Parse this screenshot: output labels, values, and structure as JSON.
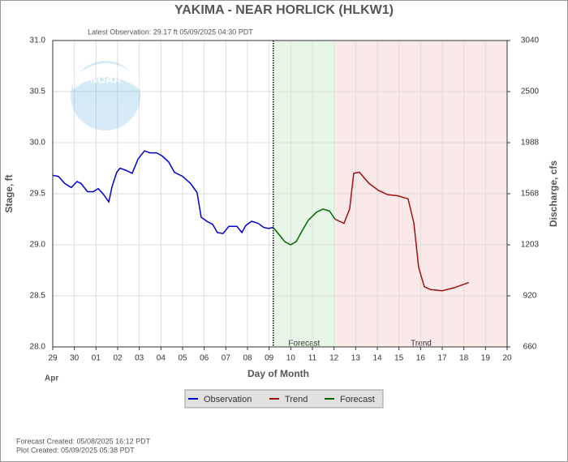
{
  "chart_data": {
    "type": "line",
    "title": "YAKIMA - NEAR HORLICK  (HLKW1)",
    "subtitle": "Latest Observation: 29.17 ft 05/09/2025 04:30 PDT",
    "logo_text": "NOAA",
    "xlabel": "Day of Month",
    "x_month_label": "Apr",
    "ylabel": "Stage, ft",
    "y2label": "Discharge, cfs",
    "xlim": [
      0,
      21
    ],
    "xticks": [
      {
        "value": 0,
        "label": "29"
      },
      {
        "value": 1,
        "label": "30"
      },
      {
        "value": 2,
        "label": "01"
      },
      {
        "value": 3,
        "label": "02"
      },
      {
        "value": 4,
        "label": "03"
      },
      {
        "value": 5,
        "label": "04"
      },
      {
        "value": 6,
        "label": "05"
      },
      {
        "value": 7,
        "label": "06"
      },
      {
        "value": 8,
        "label": "07"
      },
      {
        "value": 9,
        "label": "08"
      },
      {
        "value": 10,
        "label": "09"
      },
      {
        "value": 11,
        "label": "10"
      },
      {
        "value": 12,
        "label": "11"
      },
      {
        "value": 13,
        "label": "12"
      },
      {
        "value": 14,
        "label": "13"
      },
      {
        "value": 15,
        "label": "14"
      },
      {
        "value": 16,
        "label": "15"
      },
      {
        "value": 17,
        "label": "16"
      },
      {
        "value": 18,
        "label": "17"
      },
      {
        "value": 19,
        "label": "18"
      },
      {
        "value": 20,
        "label": "19"
      },
      {
        "value": 21,
        "label": "20"
      }
    ],
    "ylim": [
      28.0,
      31.0
    ],
    "yticks": [
      {
        "value": 28,
        "label": "28.0"
      },
      {
        "value": 28.5,
        "label": "28.5"
      },
      {
        "value": 29,
        "label": "29.0"
      },
      {
        "value": 29.5,
        "label": "29.5"
      },
      {
        "value": 30,
        "label": "30.0"
      },
      {
        "value": 30.5,
        "label": "30.5"
      },
      {
        "value": 31,
        "label": "31.0"
      }
    ],
    "y2lim": [
      660,
      3040
    ],
    "y2ticks": [
      660,
      920,
      1203,
      1568,
      1988,
      2500,
      3040
    ],
    "grid": true,
    "observation_end": 10.19,
    "shaded_regions": [
      {
        "label": "Forecast",
        "range": [
          10.19,
          13.05
        ],
        "color": "#e8f6e8"
      },
      {
        "label": "Trend",
        "range": [
          13.05,
          21
        ],
        "color": "#fbe8e8"
      }
    ],
    "series": [
      {
        "name": "Observation",
        "color": "#0000cc",
        "x": [
          0,
          0.26,
          0.56,
          0.86,
          1.12,
          1.31,
          1.61,
          1.87,
          2.1,
          2.32,
          2.59,
          2.74,
          2.96,
          3.11,
          3.37,
          3.67,
          3.94,
          4.24,
          4.5,
          4.8,
          5.06,
          5.36,
          5.62,
          6.0,
          6.37,
          6.67,
          6.86,
          7.12,
          7.39,
          7.61,
          7.87,
          8.14,
          8.51,
          8.74,
          8.92,
          9.19,
          9.49,
          9.75,
          9.97,
          10.19
        ],
        "values": [
          29.68,
          29.67,
          29.6,
          29.56,
          29.62,
          29.6,
          29.52,
          29.52,
          29.55,
          29.5,
          29.42,
          29.57,
          29.71,
          29.75,
          29.73,
          29.7,
          29.84,
          29.92,
          29.9,
          29.9,
          29.87,
          29.81,
          29.71,
          29.67,
          29.6,
          29.51,
          29.27,
          29.23,
          29.2,
          29.12,
          29.11,
          29.18,
          29.18,
          29.12,
          29.19,
          29.23,
          29.21,
          29.17,
          29.16,
          29.17
        ]
      },
      {
        "name": "Trend",
        "color": "#a01010",
        "x": [
          13.05,
          13.46,
          13.72,
          13.91,
          14.17,
          14.62,
          15.07,
          15.49,
          15.94,
          16.42,
          16.69,
          16.91,
          17.17,
          17.47,
          18.0,
          18.56,
          19.23
        ],
        "values": [
          29.25,
          29.21,
          29.35,
          29.7,
          29.71,
          29.6,
          29.53,
          29.49,
          29.48,
          29.45,
          29.21,
          28.78,
          28.59,
          28.56,
          28.55,
          28.58,
          28.63
        ]
      },
      {
        "name": "Forecast",
        "color": "#006600",
        "x": [
          10.19,
          10.46,
          10.72,
          10.99,
          11.25,
          11.51,
          11.81,
          12.19,
          12.49,
          12.79,
          13.05
        ],
        "values": [
          29.17,
          29.1,
          29.03,
          29.0,
          29.03,
          29.13,
          29.24,
          29.32,
          29.35,
          29.33,
          29.25
        ]
      }
    ],
    "legend_position": "bottom",
    "legend_order": [
      0,
      1,
      2
    ],
    "footer": [
      "Forecast Created: 05/08/2025 16:12 PDT",
      "Plot Created: 05/09/2025 05:38 PDT"
    ]
  }
}
